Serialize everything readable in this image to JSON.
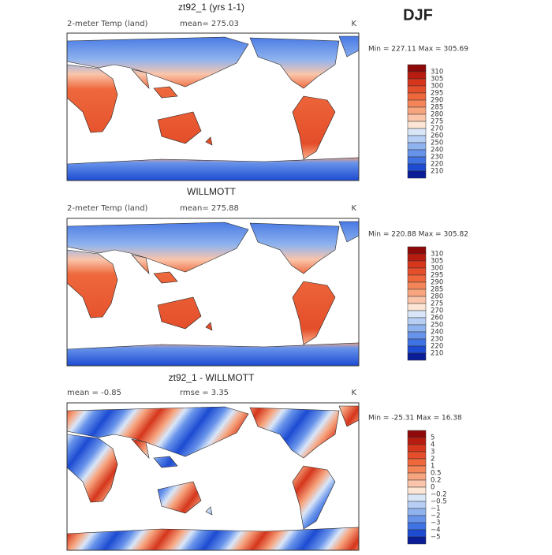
{
  "season": "DJF",
  "panels": [
    {
      "title": "zt92_1 (yrs 1-1)",
      "left": "2-meter Temp (land)",
      "center": "mean= 275.03",
      "right": "K",
      "minmax": "Min = 227.11 Max = 305.69",
      "colorbar": {
        "labels": [
          "310",
          "305",
          "300",
          "295",
          "290",
          "285",
          "280",
          "275",
          "270",
          "260",
          "250",
          "240",
          "230",
          "220",
          "210"
        ],
        "colors": [
          "#8e0a0a",
          "#b81c10",
          "#d5361c",
          "#e44e2a",
          "#ee683c",
          "#f38558",
          "#f7a57f",
          "#fac5aa",
          "#fde6d6",
          "#d9e6f8",
          "#b7cff4",
          "#8fb3ee",
          "#6793ea",
          "#3f72e3",
          "#1d4bd2",
          "#0a1d96"
        ]
      }
    },
    {
      "title": "WILLMOTT",
      "left": "2-meter Temp (land)",
      "center": "mean= 275.88",
      "right": "K",
      "minmax": "Min = 220.88 Max = 305.82",
      "colorbar": {
        "labels": [
          "310",
          "305",
          "300",
          "295",
          "290",
          "285",
          "280",
          "275",
          "270",
          "260",
          "250",
          "240",
          "230",
          "220",
          "210"
        ],
        "colors": [
          "#8e0a0a",
          "#b81c10",
          "#d5361c",
          "#e44e2a",
          "#ee683c",
          "#f38558",
          "#f7a57f",
          "#fac5aa",
          "#fde6d6",
          "#d9e6f8",
          "#b7cff4",
          "#8fb3ee",
          "#6793ea",
          "#3f72e3",
          "#1d4bd2",
          "#0a1d96"
        ]
      }
    },
    {
      "title": "zt92_1 - WILLMOTT",
      "left": "mean =  -0.85",
      "center": "rmse =   3.35",
      "right": "K",
      "minmax": "Min = -25.31 Max =  16.38",
      "colorbar": {
        "labels": [
          "5",
          "4",
          "3",
          "2",
          "1",
          "0.5",
          "0.2",
          "0",
          "−0.2",
          "−0.5",
          "−1",
          "−2",
          "−3",
          "−4",
          "−5"
        ],
        "colors": [
          "#8e0a0a",
          "#b81c10",
          "#d5361c",
          "#e44e2a",
          "#ee683c",
          "#f38558",
          "#f7a57f",
          "#fac5aa",
          "#fde6d6",
          "#d9e6f8",
          "#b7cff4",
          "#8fb3ee",
          "#6793ea",
          "#3f72e3",
          "#1d4bd2",
          "#0a1d96"
        ]
      }
    }
  ]
}
